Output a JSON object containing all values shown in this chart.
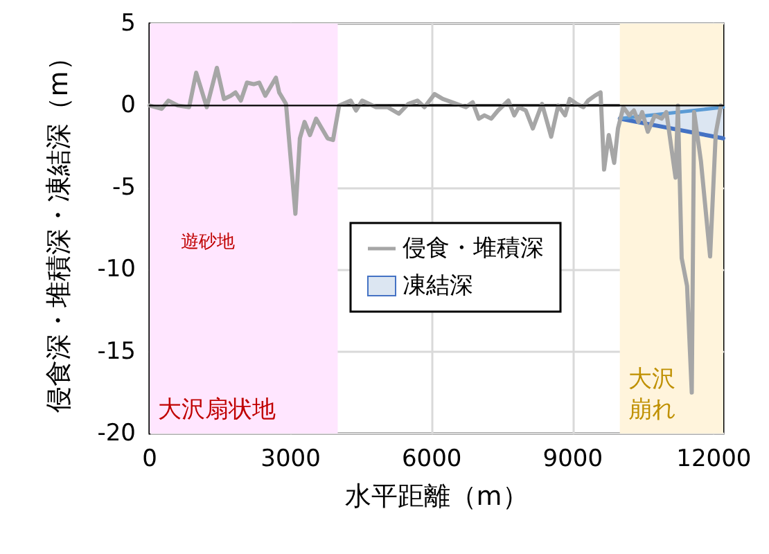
{
  "chart_data": {
    "type": "line",
    "xlabel": "水平距離（m）",
    "ylabel": "侵食深・堆積深・凍結深（m）",
    "xlim": [
      0,
      12200
    ],
    "xticks": [
      0,
      3000,
      6000,
      9000,
      12000
    ],
    "ylim": [
      -20,
      5
    ],
    "yticks": [
      -20,
      -15,
      -10,
      -5,
      0,
      5
    ],
    "grid": true,
    "legend": "center",
    "marker": "none",
    "series": [
      {
        "name": "侵食・堆積深",
        "color": "#a6a6a6",
        "x": [
          0,
          255,
          400,
          600,
          840,
          990,
          1215,
          1430,
          1580,
          1725,
          1825,
          1940,
          2070,
          2215,
          2330,
          2460,
          2685,
          2755,
          2900,
          3100,
          3195,
          3295,
          3410,
          3540,
          3785,
          3900,
          4030,
          4275,
          4390,
          4520,
          4815,
          5060,
          5300,
          5500,
          5695,
          5845,
          6060,
          6235,
          6530,
          6725,
          6870,
          7000,
          7120,
          7265,
          7410,
          7630,
          7755,
          7850,
          8000,
          8150,
          8345,
          8540,
          8690,
          8835,
          8935,
          9080,
          9225,
          9325,
          9470,
          9590,
          9665,
          9765,
          9880,
          9960,
          10075,
          10200,
          10300,
          10395,
          10475,
          10595,
          10745,
          10890,
          10990,
          11185,
          11235,
          11315,
          11430,
          11530,
          11580,
          11725,
          11920,
          12040,
          12150
        ],
        "values": [
          0,
          -0.2,
          0.3,
          0,
          -0.1,
          2.0,
          -0.1,
          2.3,
          0.4,
          0.6,
          0.8,
          0.3,
          1.4,
          1.3,
          1.4,
          0.6,
          1.7,
          0.8,
          0.1,
          -6.6,
          -2.0,
          -1.0,
          -1.8,
          -0.8,
          -2.0,
          -2.1,
          0,
          0.3,
          -0.3,
          0.3,
          -0.1,
          -0.1,
          -0.5,
          0.1,
          0.3,
          -0.1,
          0.7,
          0.4,
          0.1,
          -0.1,
          0.2,
          -0.8,
          -0.6,
          -0.8,
          -0.3,
          0.3,
          -0.6,
          -0.1,
          -0.3,
          -1.4,
          0.1,
          -1.9,
          0,
          -0.6,
          0.4,
          0.1,
          -0.1,
          0.3,
          0.6,
          0.8,
          -3.9,
          -1.8,
          -3.5,
          -1.4,
          -0.1,
          -0.6,
          -0.3,
          -1.0,
          -0.4,
          -1.6,
          -0.6,
          -0.8,
          -0.4,
          -4.4,
          0,
          -9.3,
          -11.0,
          -17.5,
          -0.4,
          -3.4,
          -9.2,
          -1.7,
          0
        ]
      },
      {
        "name": "凍結深",
        "type": "area",
        "color": "#4472c4",
        "x": [
          10000,
          12200
        ],
        "values": [
          -0.8,
          -2.0
        ]
      },
      {
        "type": "line",
        "color": "#5b9bd5",
        "x": [
          10000,
          12200
        ],
        "values": [
          -0.8,
          -0.1
        ]
      }
    ],
    "ref_lines": [
      {
        "axis": "y",
        "value": 0,
        "color": "#000000"
      }
    ],
    "bands": [
      {
        "axis": "x",
        "from": 0,
        "to": 4000,
        "label": "大沢扇状地",
        "color": "#ffe6ff"
      },
      {
        "axis": "x",
        "from": 10000,
        "to": 12200,
        "label": "大沢崩れ",
        "color": "#fff4dc"
      }
    ],
    "annotations": [
      "遊砂地"
    ]
  }
}
